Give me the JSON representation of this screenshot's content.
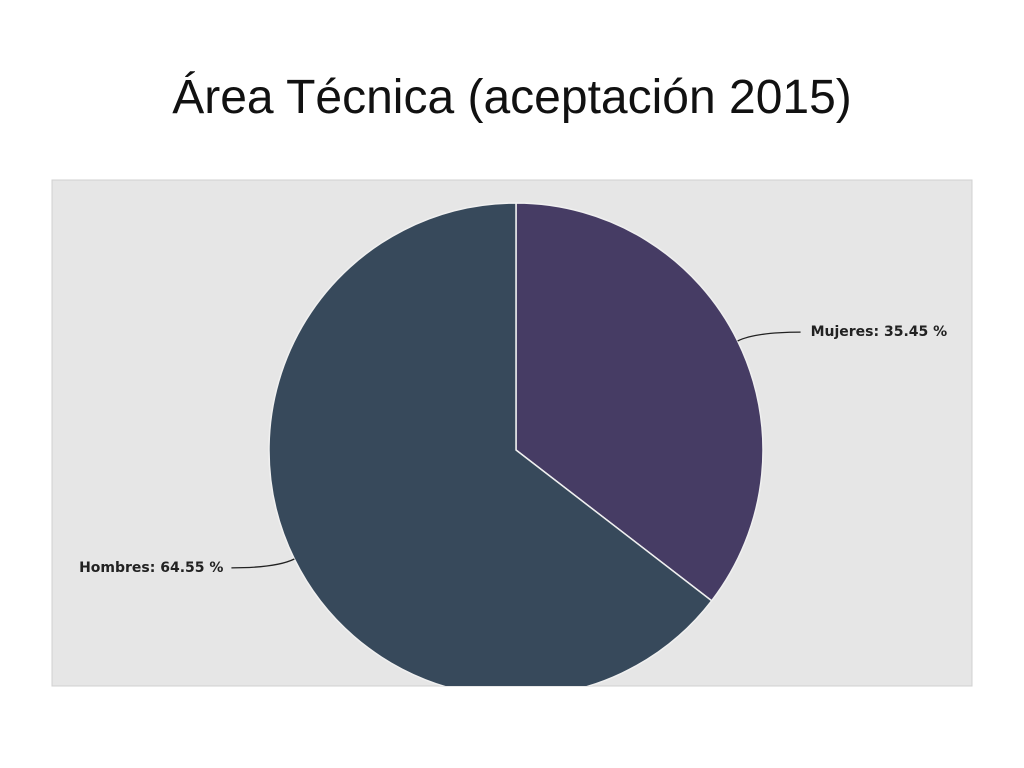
{
  "chart_data": {
    "type": "pie",
    "title": "Área Técnica (aceptación 2015)",
    "values": [
      35.45,
      64.55
    ],
    "value_labels": [
      "Mujeres: 35.45 %",
      "Hombres: 64.55 %"
    ],
    "colors": [
      "#463c64",
      "#37495b"
    ]
  }
}
